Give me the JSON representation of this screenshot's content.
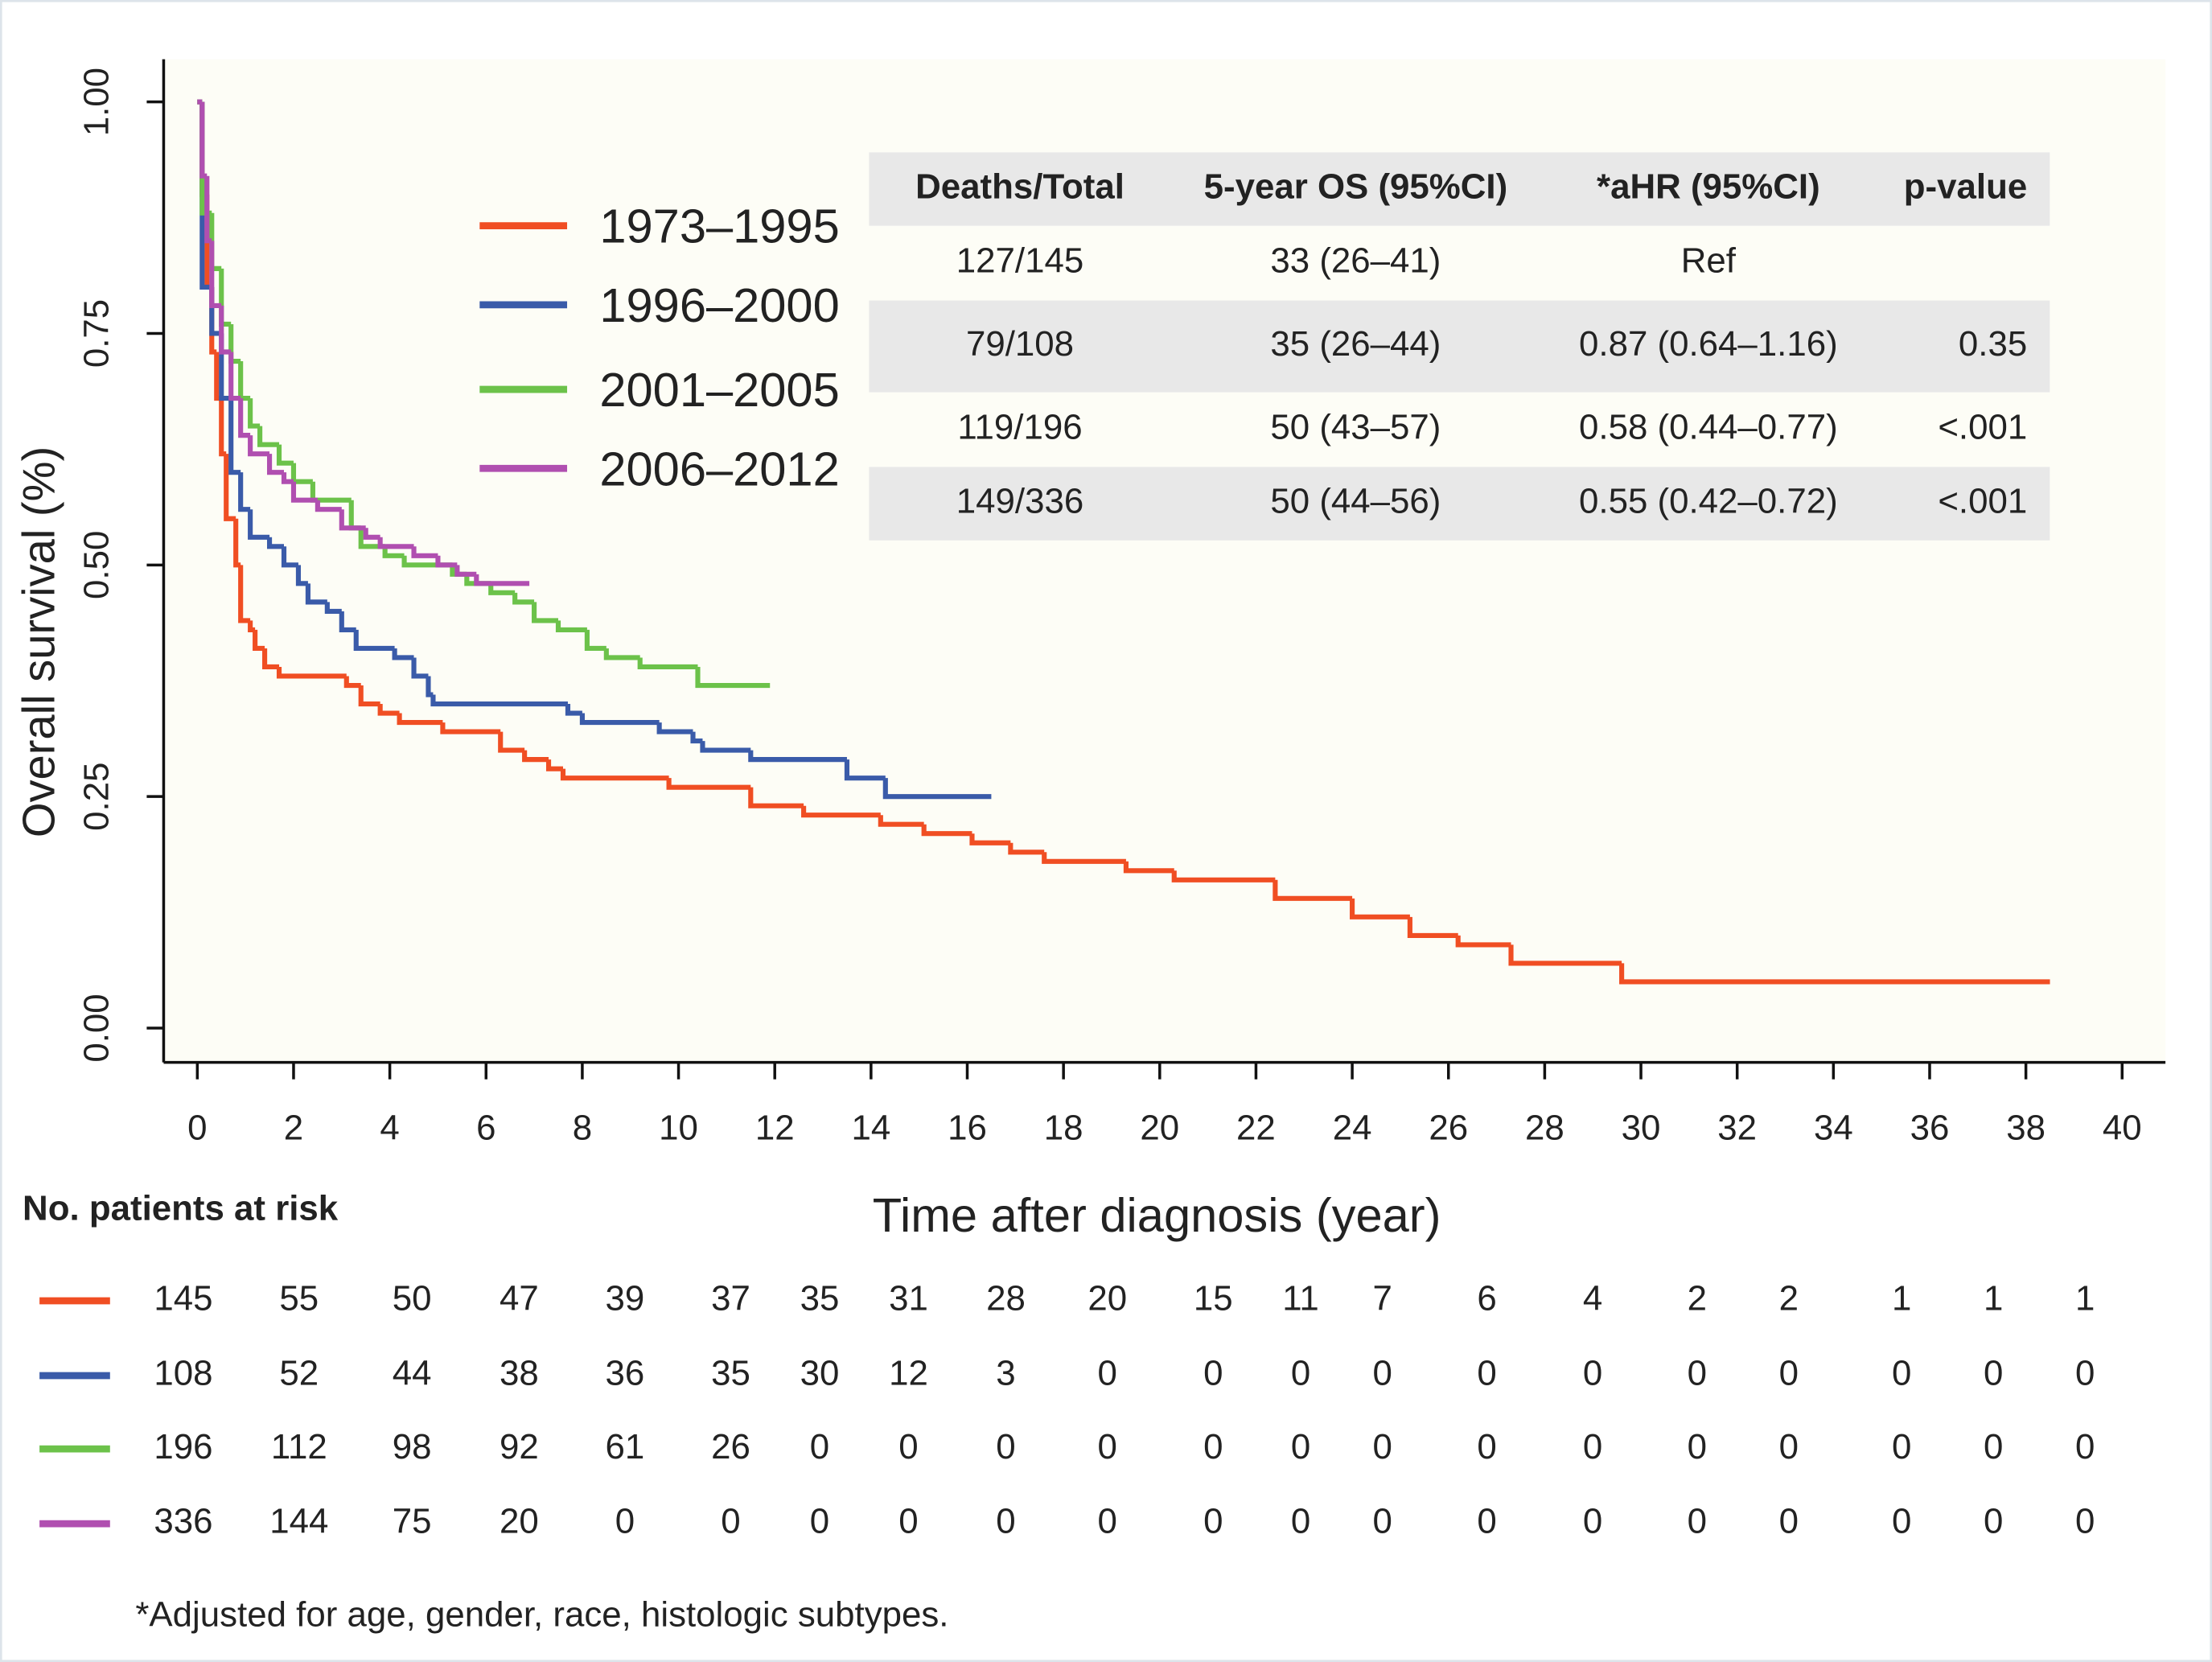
{
  "chart_data": {
    "type": "line",
    "step": true,
    "y_label": "Overall survival (%)",
    "x_label": "Time after diagnosis (year)",
    "xlim": [
      -0.7,
      40.9
    ],
    "ylim": [
      -0.037,
      1.046
    ],
    "xticks": [
      0,
      2,
      4,
      6,
      8,
      10,
      12,
      14,
      16,
      18,
      20,
      22,
      24,
      26,
      28,
      30,
      32,
      34,
      36,
      38,
      40
    ],
    "yticks": [
      {
        "value": 0,
        "label": "0.00"
      },
      {
        "value": 0.25,
        "label": "0.25"
      },
      {
        "value": 0.5,
        "label": "0.50"
      },
      {
        "value": 0.75,
        "label": "0.75"
      },
      {
        "value": 1,
        "label": "1.00"
      }
    ],
    "grid": false,
    "series": [
      {
        "name": "1973–1995",
        "color": "#f04e23",
        "x": [
          0,
          0.1,
          0.2,
          0.3,
          0.4,
          0.5,
          0.6,
          0.8,
          0.9,
          1.1,
          1.2,
          1.4,
          1.7,
          3.1,
          3.4,
          3.8,
          4.2,
          5.1,
          6.3,
          6.8,
          7.3,
          7.6,
          9.8,
          11.5,
          12.6,
          14.2,
          15.1,
          16.1,
          16.9,
          17.6,
          19.3,
          20.3,
          22.4,
          24.0,
          25.2,
          26.2,
          27.3,
          29.6,
          38.5
        ],
        "values": [
          1.0,
          0.9,
          0.8,
          0.73,
          0.68,
          0.62,
          0.55,
          0.5,
          0.44,
          0.43,
          0.41,
          0.39,
          0.38,
          0.37,
          0.35,
          0.34,
          0.33,
          0.32,
          0.3,
          0.29,
          0.28,
          0.27,
          0.26,
          0.24,
          0.23,
          0.22,
          0.21,
          0.2,
          0.19,
          0.18,
          0.17,
          0.16,
          0.14,
          0.12,
          0.1,
          0.09,
          0.07,
          0.05,
          0.05
        ]
      },
      {
        "name": "1996–2000",
        "color": "#3a5ba9",
        "x": [
          0,
          0.1,
          0.3,
          0.5,
          0.7,
          0.9,
          1.1,
          1.5,
          1.8,
          2.1,
          2.3,
          2.7,
          3.0,
          3.3,
          4.1,
          4.5,
          4.8,
          4.9,
          7.7,
          8.0,
          9.6,
          10.3,
          10.5,
          11.5,
          13.5,
          14.3,
          16.5
        ],
        "values": [
          1.0,
          0.8,
          0.75,
          0.68,
          0.6,
          0.56,
          0.53,
          0.52,
          0.5,
          0.48,
          0.46,
          0.45,
          0.43,
          0.41,
          0.4,
          0.38,
          0.36,
          0.35,
          0.34,
          0.33,
          0.32,
          0.31,
          0.3,
          0.29,
          0.27,
          0.25,
          0.25
        ]
      },
      {
        "name": "2001–2005",
        "color": "#6cc24a",
        "x": [
          0,
          0.1,
          0.3,
          0.5,
          0.7,
          0.9,
          1.1,
          1.3,
          1.7,
          2.0,
          2.4,
          3.2,
          3.4,
          3.9,
          4.3,
          5.3,
          5.6,
          6.1,
          6.6,
          7.0,
          7.5,
          8.1,
          8.5,
          9.2,
          10.4,
          11.9
        ],
        "values": [
          1.0,
          0.88,
          0.82,
          0.76,
          0.72,
          0.68,
          0.65,
          0.63,
          0.61,
          0.59,
          0.57,
          0.54,
          0.52,
          0.51,
          0.5,
          0.49,
          0.48,
          0.47,
          0.46,
          0.44,
          0.43,
          0.41,
          0.4,
          0.39,
          0.37,
          0.37
        ]
      },
      {
        "name": "2006–2012",
        "color": "#b04fb0",
        "x": [
          0,
          0.1,
          0.2,
          0.3,
          0.5,
          0.7,
          0.9,
          1.1,
          1.5,
          1.8,
          2.0,
          2.5,
          3.0,
          3.5,
          3.8,
          4.5,
          5.0,
          5.4,
          5.8,
          6.9
        ],
        "values": [
          1.0,
          0.92,
          0.85,
          0.78,
          0.73,
          0.68,
          0.64,
          0.62,
          0.6,
          0.59,
          0.57,
          0.56,
          0.54,
          0.53,
          0.52,
          0.51,
          0.5,
          0.49,
          0.48,
          0.48
        ]
      }
    ],
    "stats_table": {
      "columns": [
        "Deaths/Total",
        "5-year OS (95%CI)",
        "*aHR (95%CI)",
        "p-value"
      ],
      "rows": [
        [
          "127/145",
          "33 (26–41)",
          "Ref",
          null
        ],
        [
          "79/108",
          "35 (26–44)",
          "0.87 (0.64–1.16)",
          "0.35"
        ],
        [
          "119/196",
          "50 (43–57)",
          "0.58 (0.44–0.77)",
          "<.001"
        ],
        [
          "149/336",
          "50 (44–56)",
          "0.55 (0.42–0.72)",
          "<.001"
        ]
      ]
    },
    "risk_table": {
      "title": "No. patients at risk",
      "rows": [
        [
          145,
          55,
          50,
          47,
          39,
          37,
          35,
          31,
          28,
          20,
          15,
          11,
          7,
          6,
          4,
          2,
          2,
          1,
          1,
          1
        ],
        [
          108,
          52,
          44,
          38,
          36,
          35,
          30,
          12,
          3,
          0,
          0,
          0,
          0,
          0,
          0,
          0,
          0,
          0,
          0,
          0
        ],
        [
          196,
          112,
          98,
          92,
          61,
          26,
          0,
          0,
          0,
          0,
          0,
          0,
          0,
          0,
          0,
          0,
          0,
          0,
          0,
          0
        ],
        [
          336,
          144,
          75,
          20,
          0,
          0,
          0,
          0,
          0,
          0,
          0,
          0,
          0,
          0,
          0,
          0,
          0,
          0,
          0,
          0
        ]
      ]
    },
    "footnote": "*Adjusted for age, gender, race, histologic subtypes."
  }
}
